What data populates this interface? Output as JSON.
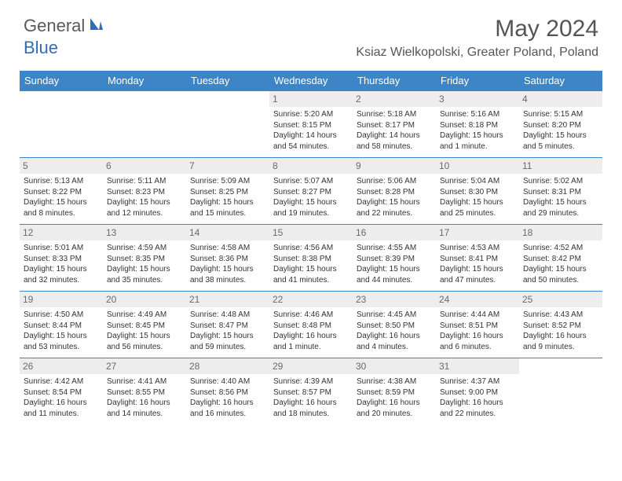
{
  "logo": {
    "general": "General",
    "blue": "Blue"
  },
  "title": "May 2024",
  "location": "Ksiaz Wielkopolski, Greater Poland, Poland",
  "colors": {
    "header_bg": "#3d85c6",
    "header_text": "#ffffff",
    "daynum_bg": "#ededed",
    "daynum_text": "#6a6a6a",
    "cell_border": "#3d85c6",
    "body_text": "#333333",
    "title_text": "#555555",
    "logo_gray": "#5a5a5a",
    "logo_blue": "#2f6eb5"
  },
  "weekdays": [
    "Sunday",
    "Monday",
    "Tuesday",
    "Wednesday",
    "Thursday",
    "Friday",
    "Saturday"
  ],
  "weeks": [
    [
      {
        "day": "",
        "sunrise": "",
        "sunset": "",
        "daylight": ""
      },
      {
        "day": "",
        "sunrise": "",
        "sunset": "",
        "daylight": ""
      },
      {
        "day": "",
        "sunrise": "",
        "sunset": "",
        "daylight": ""
      },
      {
        "day": "1",
        "sunrise": "Sunrise: 5:20 AM",
        "sunset": "Sunset: 8:15 PM",
        "daylight": "Daylight: 14 hours and 54 minutes."
      },
      {
        "day": "2",
        "sunrise": "Sunrise: 5:18 AM",
        "sunset": "Sunset: 8:17 PM",
        "daylight": "Daylight: 14 hours and 58 minutes."
      },
      {
        "day": "3",
        "sunrise": "Sunrise: 5:16 AM",
        "sunset": "Sunset: 8:18 PM",
        "daylight": "Daylight: 15 hours and 1 minute."
      },
      {
        "day": "4",
        "sunrise": "Sunrise: 5:15 AM",
        "sunset": "Sunset: 8:20 PM",
        "daylight": "Daylight: 15 hours and 5 minutes."
      }
    ],
    [
      {
        "day": "5",
        "sunrise": "Sunrise: 5:13 AM",
        "sunset": "Sunset: 8:22 PM",
        "daylight": "Daylight: 15 hours and 8 minutes."
      },
      {
        "day": "6",
        "sunrise": "Sunrise: 5:11 AM",
        "sunset": "Sunset: 8:23 PM",
        "daylight": "Daylight: 15 hours and 12 minutes."
      },
      {
        "day": "7",
        "sunrise": "Sunrise: 5:09 AM",
        "sunset": "Sunset: 8:25 PM",
        "daylight": "Daylight: 15 hours and 15 minutes."
      },
      {
        "day": "8",
        "sunrise": "Sunrise: 5:07 AM",
        "sunset": "Sunset: 8:27 PM",
        "daylight": "Daylight: 15 hours and 19 minutes."
      },
      {
        "day": "9",
        "sunrise": "Sunrise: 5:06 AM",
        "sunset": "Sunset: 8:28 PM",
        "daylight": "Daylight: 15 hours and 22 minutes."
      },
      {
        "day": "10",
        "sunrise": "Sunrise: 5:04 AM",
        "sunset": "Sunset: 8:30 PM",
        "daylight": "Daylight: 15 hours and 25 minutes."
      },
      {
        "day": "11",
        "sunrise": "Sunrise: 5:02 AM",
        "sunset": "Sunset: 8:31 PM",
        "daylight": "Daylight: 15 hours and 29 minutes."
      }
    ],
    [
      {
        "day": "12",
        "sunrise": "Sunrise: 5:01 AM",
        "sunset": "Sunset: 8:33 PM",
        "daylight": "Daylight: 15 hours and 32 minutes."
      },
      {
        "day": "13",
        "sunrise": "Sunrise: 4:59 AM",
        "sunset": "Sunset: 8:35 PM",
        "daylight": "Daylight: 15 hours and 35 minutes."
      },
      {
        "day": "14",
        "sunrise": "Sunrise: 4:58 AM",
        "sunset": "Sunset: 8:36 PM",
        "daylight": "Daylight: 15 hours and 38 minutes."
      },
      {
        "day": "15",
        "sunrise": "Sunrise: 4:56 AM",
        "sunset": "Sunset: 8:38 PM",
        "daylight": "Daylight: 15 hours and 41 minutes."
      },
      {
        "day": "16",
        "sunrise": "Sunrise: 4:55 AM",
        "sunset": "Sunset: 8:39 PM",
        "daylight": "Daylight: 15 hours and 44 minutes."
      },
      {
        "day": "17",
        "sunrise": "Sunrise: 4:53 AM",
        "sunset": "Sunset: 8:41 PM",
        "daylight": "Daylight: 15 hours and 47 minutes."
      },
      {
        "day": "18",
        "sunrise": "Sunrise: 4:52 AM",
        "sunset": "Sunset: 8:42 PM",
        "daylight": "Daylight: 15 hours and 50 minutes."
      }
    ],
    [
      {
        "day": "19",
        "sunrise": "Sunrise: 4:50 AM",
        "sunset": "Sunset: 8:44 PM",
        "daylight": "Daylight: 15 hours and 53 minutes."
      },
      {
        "day": "20",
        "sunrise": "Sunrise: 4:49 AM",
        "sunset": "Sunset: 8:45 PM",
        "daylight": "Daylight: 15 hours and 56 minutes."
      },
      {
        "day": "21",
        "sunrise": "Sunrise: 4:48 AM",
        "sunset": "Sunset: 8:47 PM",
        "daylight": "Daylight: 15 hours and 59 minutes."
      },
      {
        "day": "22",
        "sunrise": "Sunrise: 4:46 AM",
        "sunset": "Sunset: 8:48 PM",
        "daylight": "Daylight: 16 hours and 1 minute."
      },
      {
        "day": "23",
        "sunrise": "Sunrise: 4:45 AM",
        "sunset": "Sunset: 8:50 PM",
        "daylight": "Daylight: 16 hours and 4 minutes."
      },
      {
        "day": "24",
        "sunrise": "Sunrise: 4:44 AM",
        "sunset": "Sunset: 8:51 PM",
        "daylight": "Daylight: 16 hours and 6 minutes."
      },
      {
        "day": "25",
        "sunrise": "Sunrise: 4:43 AM",
        "sunset": "Sunset: 8:52 PM",
        "daylight": "Daylight: 16 hours and 9 minutes."
      }
    ],
    [
      {
        "day": "26",
        "sunrise": "Sunrise: 4:42 AM",
        "sunset": "Sunset: 8:54 PM",
        "daylight": "Daylight: 16 hours and 11 minutes."
      },
      {
        "day": "27",
        "sunrise": "Sunrise: 4:41 AM",
        "sunset": "Sunset: 8:55 PM",
        "daylight": "Daylight: 16 hours and 14 minutes."
      },
      {
        "day": "28",
        "sunrise": "Sunrise: 4:40 AM",
        "sunset": "Sunset: 8:56 PM",
        "daylight": "Daylight: 16 hours and 16 minutes."
      },
      {
        "day": "29",
        "sunrise": "Sunrise: 4:39 AM",
        "sunset": "Sunset: 8:57 PM",
        "daylight": "Daylight: 16 hours and 18 minutes."
      },
      {
        "day": "30",
        "sunrise": "Sunrise: 4:38 AM",
        "sunset": "Sunset: 8:59 PM",
        "daylight": "Daylight: 16 hours and 20 minutes."
      },
      {
        "day": "31",
        "sunrise": "Sunrise: 4:37 AM",
        "sunset": "Sunset: 9:00 PM",
        "daylight": "Daylight: 16 hours and 22 minutes."
      },
      {
        "day": "",
        "sunrise": "",
        "sunset": "",
        "daylight": ""
      }
    ]
  ]
}
